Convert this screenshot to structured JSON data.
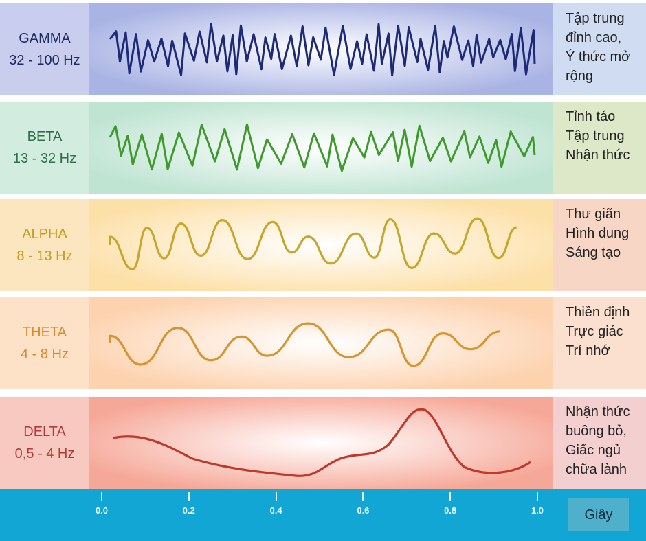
{
  "bands": [
    {
      "name": "GAMMA",
      "range": "32 - 100 Hz",
      "desc": [
        "Tập trung",
        "đỉnh cao,",
        "Ý thức mở",
        "rộng"
      ],
      "color": "#1c2a78",
      "label_color": "#1e2a60",
      "bg_left": "#c9cdee",
      "bg_wave": "#a9b3e4",
      "bg_right": "#cfdcf2"
    },
    {
      "name": "BETA",
      "range": "13 - 32 Hz",
      "desc": [
        "Tỉnh táo",
        "Tập trung",
        "Nhận thức"
      ],
      "color": "#3f9a2e",
      "label_color": "#2f6f4a",
      "bg_left": "#d2ecdf",
      "bg_wave": "#bfe4d2",
      "bg_right": "#dde8c8"
    },
    {
      "name": "ALPHA",
      "range": "8 - 13 Hz",
      "desc": [
        "Thư giãn",
        "Hình dung",
        "Sáng tạo"
      ],
      "color": "#c8a62c",
      "label_color": "#c99a1c",
      "bg_left": "#fbe6bf",
      "bg_wave": "#fde0a8",
      "bg_right": "#f8d6c6"
    },
    {
      "name": "THETA",
      "range": "4 - 8 Hz",
      "desc": [
        "Thiền định",
        "Trực giác",
        "Trí nhớ"
      ],
      "color": "#d99430",
      "label_color": "#d98a2a",
      "bg_left": "#fde2c8",
      "bg_wave": "#fdd2ae",
      "bg_right": "#fbe0d0"
    },
    {
      "name": "DELTA",
      "range": "0,5 - 4 Hz",
      "desc": [
        "Nhận thức",
        "buông bỏ,",
        "Giấc ngủ",
        "chữa lành"
      ],
      "color": "#c0392b",
      "label_color": "#b23a3a",
      "bg_left": "#f7c9c0",
      "bg_wave": "#f6a898",
      "bg_right": "#f3cfd0"
    }
  ],
  "axis": {
    "ticks": [
      "0.0",
      "0.2",
      "0.4",
      "0.6",
      "0.8",
      "1.0"
    ],
    "unit": "Giây"
  }
}
